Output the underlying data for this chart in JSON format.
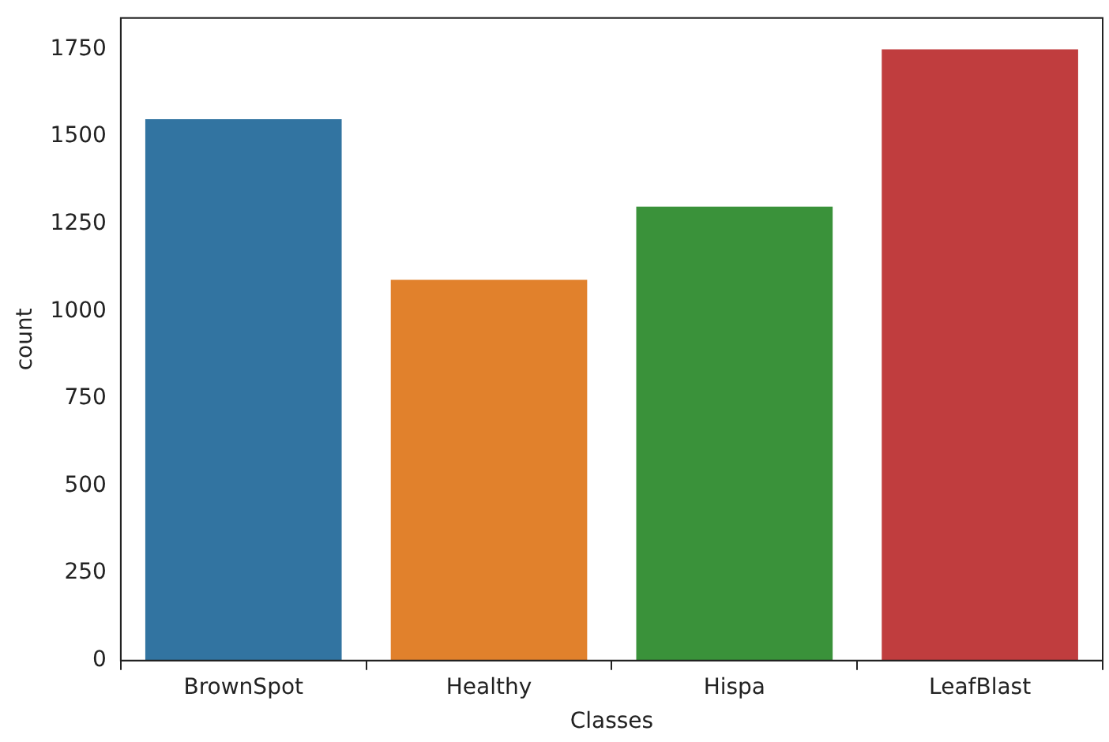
{
  "chart_data": {
    "type": "bar",
    "xlabel": "Classes",
    "ylabel": "count",
    "categories": [
      "BrownSpot",
      "Healthy",
      "Hispa",
      "LeafBlast"
    ],
    "values": [
      1550,
      1090,
      1300,
      1750
    ],
    "colors": [
      "#3274a1",
      "#e1812c",
      "#3a923a",
      "#c03d3e"
    ],
    "ylim": [
      0,
      1840
    ],
    "yticks": [
      0,
      250,
      500,
      750,
      1000,
      1250,
      1500,
      1750
    ],
    "grid": false,
    "legend": false
  }
}
